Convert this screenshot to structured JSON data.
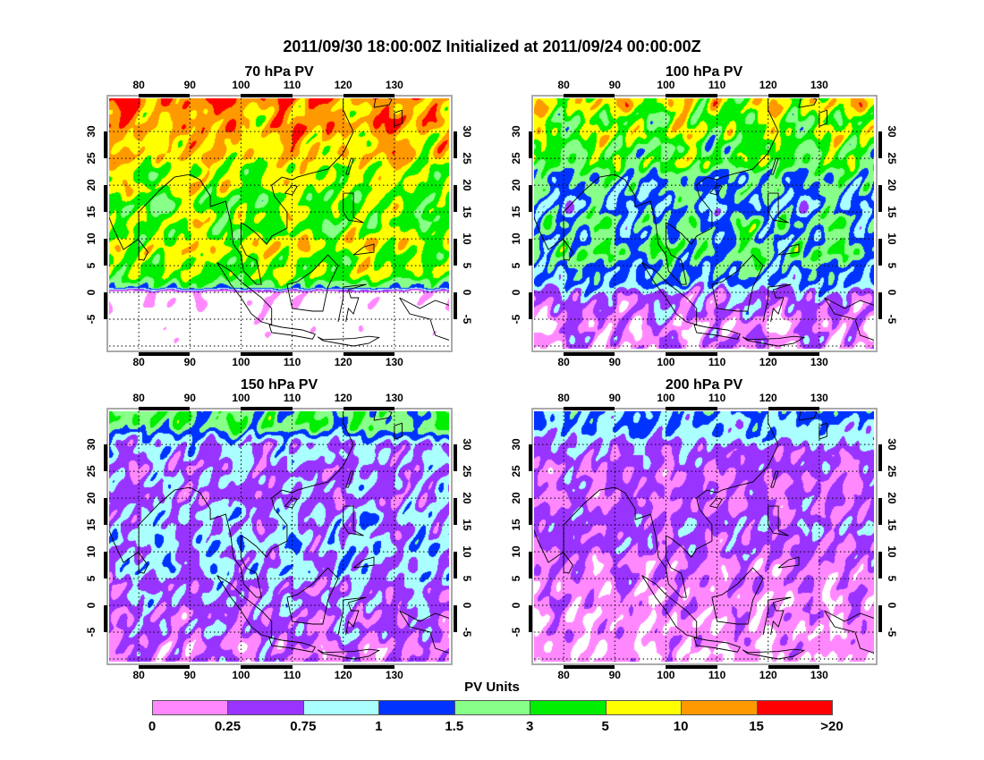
{
  "title": "2011/09/30 18:00:00Z Initialized at 2011/09/24 00:00:00Z",
  "panels": [
    {
      "id": "70",
      "title": "70 hPa PV"
    },
    {
      "id": "100",
      "title": "100 hPa PV"
    },
    {
      "id": "150",
      "title": "150 hPa PV"
    },
    {
      "id": "200",
      "title": "200 hPa PV"
    }
  ],
  "map_extent": {
    "lon_min": 74.2,
    "lon_max": 140.7,
    "lat_min": -10.5,
    "lat_max": 36.2
  },
  "lon_ticks": [
    "80",
    "90",
    "100",
    "110",
    "120",
    "130"
  ],
  "lat_ticks": [
    "30",
    "25",
    "20",
    "15",
    "10",
    "5",
    "0",
    "-5"
  ],
  "colorbar": {
    "title": "PV Units",
    "labels": [
      "0",
      "0.25",
      "0.75",
      "1",
      "1.5",
      "3",
      "5",
      "10",
      "15",
      ">20"
    ],
    "colors": [
      "#ff88ff",
      "#9933ff",
      "#aaffff",
      "#0033ff",
      "#88ff88",
      "#00ee00",
      "#ffff00",
      "#ff9900",
      "#ff0000"
    ]
  }
}
